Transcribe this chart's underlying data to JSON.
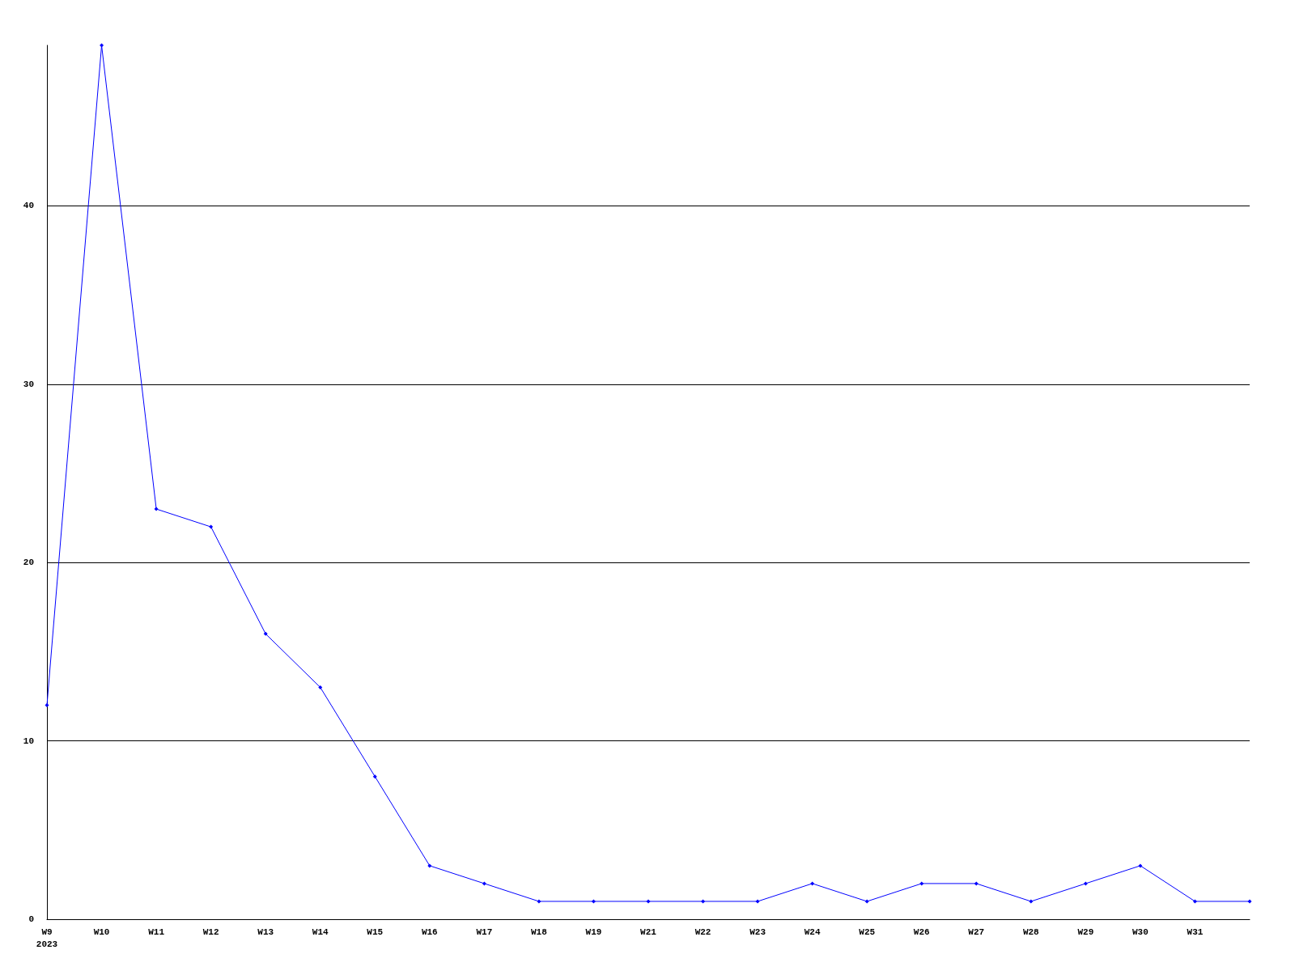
{
  "chart_data": {
    "type": "line",
    "categories": [
      "W9\n2023",
      "W10",
      "W11",
      "W12",
      "W13",
      "W14",
      "W15",
      "W16",
      "W17",
      "W18",
      "W19",
      "W21",
      "W22",
      "W23",
      "W24",
      "W25",
      "W26",
      "W27",
      "W28",
      "W29",
      "W30",
      "W31",
      null
    ],
    "series": [
      {
        "color": "#0000ff",
        "values": [
          12,
          49,
          23,
          22,
          16,
          13,
          8,
          3,
          2,
          1,
          1,
          1,
          1,
          1,
          2,
          1,
          2,
          2,
          1,
          2,
          3,
          1,
          1
        ]
      }
    ],
    "ylim": [
      0,
      49
    ],
    "yticks": [
      0,
      10,
      20,
      30,
      40
    ],
    "grid": "y",
    "marker": "diamond",
    "line_style": "solid"
  }
}
